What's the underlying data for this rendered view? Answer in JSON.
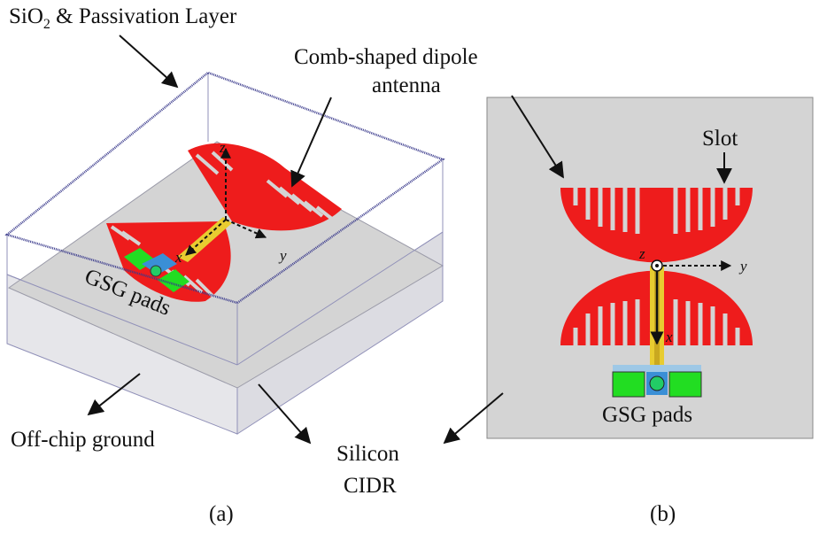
{
  "labels": {
    "passivation_main": "SiO",
    "passivation_sub": "2",
    "passivation_rest": " & Passivation Layer",
    "antenna_line1": "Comb-shaped dipole",
    "antenna_line2": "antenna",
    "gsg_a": "GSG pads",
    "gsg_b": "GSG pads",
    "slot": "Slot",
    "offchip": "Off-chip ground",
    "silicon_line1": "Silicon",
    "silicon_line2": "CIDR",
    "caption_a": "(a)",
    "caption_b": "(b)"
  },
  "axes": {
    "a": {
      "z": "z",
      "x": "x",
      "y": "y"
    },
    "b": {
      "z": "z",
      "x": "x",
      "y": "y"
    }
  },
  "colors": {
    "antenna": "#ee1c1c",
    "pad": "#22dd22",
    "feed": "#e8cc30",
    "substrate": "#d4d4d4",
    "frame": "#3a3a8c",
    "box_edge": "#9090b8"
  }
}
